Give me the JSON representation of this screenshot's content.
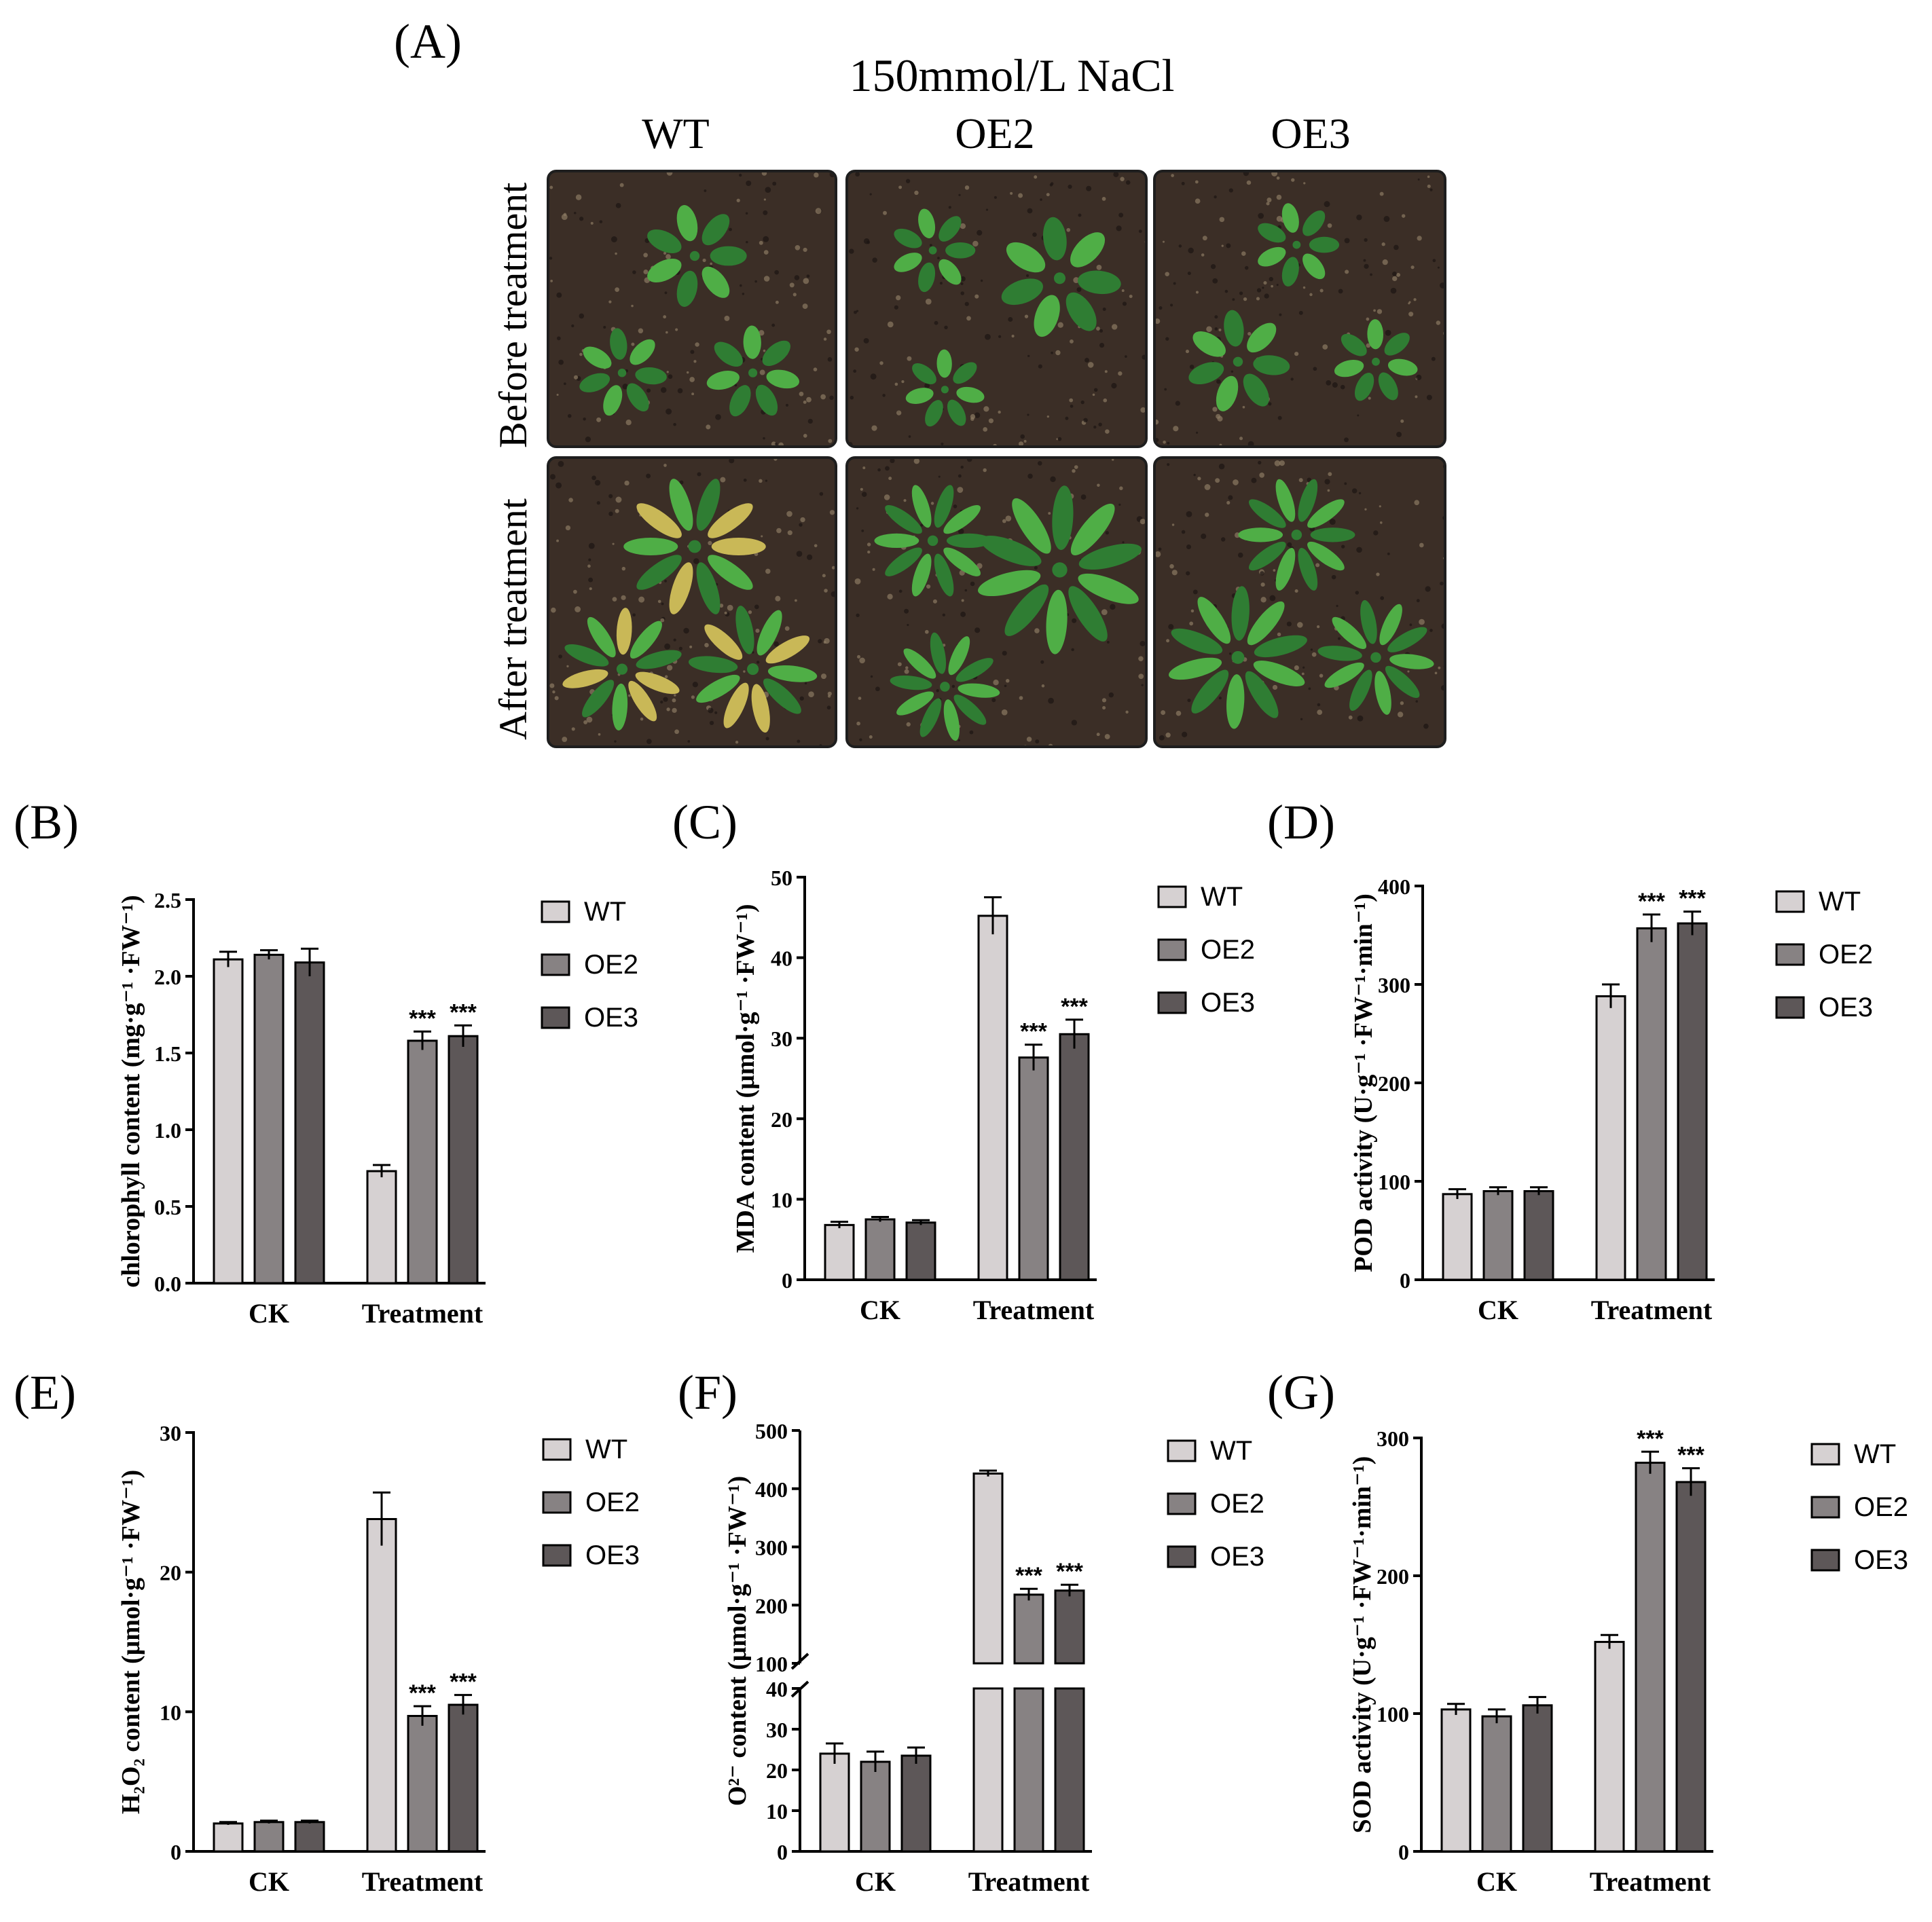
{
  "panel_a": {
    "letter": "(A)",
    "title": "150mmol/L NaCl",
    "columns": [
      "WT",
      "OE2",
      "OE3"
    ],
    "rows": [
      "Before treatment",
      "After treatment"
    ]
  },
  "chart_data": [
    {
      "letter": "(B)",
      "type": "bar",
      "categories": [
        "CK",
        "Treatment"
      ],
      "series": [
        {
          "name": "WT",
          "values": [
            2.11,
            0.73
          ],
          "errors": [
            0.05,
            0.04
          ],
          "sig": [
            "",
            ""
          ]
        },
        {
          "name": "OE2",
          "values": [
            2.14,
            1.58
          ],
          "errors": [
            0.03,
            0.06
          ],
          "sig": [
            "",
            "***"
          ]
        },
        {
          "name": "OE3",
          "values": [
            2.09,
            1.61
          ],
          "errors": [
            0.09,
            0.07
          ],
          "sig": [
            "",
            "***"
          ]
        }
      ],
      "ylabel": "chlorophyll content (mg·g⁻¹ ·FW⁻¹)",
      "ylim": [
        0,
        2.5
      ],
      "yticks": [
        "0.0",
        "0.5",
        "1.0",
        "1.5",
        "2.0",
        "2.5"
      ],
      "ytick_values": [
        0,
        0.5,
        1.0,
        1.5,
        2.0,
        2.5
      ]
    },
    {
      "letter": "(C)",
      "type": "bar",
      "categories": [
        "CK",
        "Treatment"
      ],
      "series": [
        {
          "name": "WT",
          "values": [
            6.8,
            45.2
          ],
          "errors": [
            0.4,
            2.3
          ],
          "sig": [
            "",
            ""
          ]
        },
        {
          "name": "OE2",
          "values": [
            7.5,
            27.6
          ],
          "errors": [
            0.3,
            1.6
          ],
          "sig": [
            "",
            "***"
          ]
        },
        {
          "name": "OE3",
          "values": [
            7.1,
            30.5
          ],
          "errors": [
            0.3,
            1.8
          ],
          "sig": [
            "",
            "***"
          ]
        }
      ],
      "ylabel": "MDA content (μmol·g⁻¹ ·FW⁻¹)",
      "ylim": [
        0,
        50
      ],
      "yticks": [
        "0",
        "10",
        "20",
        "30",
        "40",
        "50"
      ],
      "ytick_values": [
        0,
        10,
        20,
        30,
        40,
        50
      ]
    },
    {
      "letter": "(D)",
      "type": "bar",
      "categories": [
        "CK",
        "Treatment"
      ],
      "series": [
        {
          "name": "WT",
          "values": [
            87,
            288
          ],
          "errors": [
            5,
            12
          ],
          "sig": [
            "",
            ""
          ]
        },
        {
          "name": "OE2",
          "values": [
            90,
            357
          ],
          "errors": [
            4,
            14
          ],
          "sig": [
            "",
            "***"
          ]
        },
        {
          "name": "OE3",
          "values": [
            90,
            362
          ],
          "errors": [
            4,
            12
          ],
          "sig": [
            "",
            "***"
          ]
        }
      ],
      "ylabel": "POD activity (U·g⁻¹ ·FW⁻¹·min⁻¹)",
      "ylim": [
        0,
        400
      ],
      "yticks": [
        "0",
        "100",
        "200",
        "300",
        "400"
      ],
      "ytick_values": [
        0,
        100,
        200,
        300,
        400
      ]
    },
    {
      "letter": "(E)",
      "type": "bar",
      "categories": [
        "CK",
        "Treatment"
      ],
      "series": [
        {
          "name": "WT",
          "values": [
            2.0,
            23.8
          ],
          "errors": [
            0.1,
            1.9
          ],
          "sig": [
            "",
            ""
          ]
        },
        {
          "name": "OE2",
          "values": [
            2.1,
            9.7
          ],
          "errors": [
            0.1,
            0.7
          ],
          "sig": [
            "",
            "***"
          ]
        },
        {
          "name": "OE3",
          "values": [
            2.1,
            10.5
          ],
          "errors": [
            0.1,
            0.7
          ],
          "sig": [
            "",
            "***"
          ]
        }
      ],
      "ylabel": "H₂O₂ content (μmol·g⁻¹ ·FW⁻¹)",
      "ylim": [
        0,
        30
      ],
      "yticks": [
        "0",
        "10",
        "20",
        "30"
      ],
      "ytick_values": [
        0,
        10,
        20,
        30
      ]
    },
    {
      "letter": "(F)",
      "type": "bar",
      "broken_axis": true,
      "categories": [
        "CK",
        "Treatment"
      ],
      "series": [
        {
          "name": "WT",
          "values": [
            24,
            426
          ],
          "errors": [
            2.5,
            5
          ],
          "sig": [
            "",
            ""
          ]
        },
        {
          "name": "OE2",
          "values": [
            22,
            218
          ],
          "errors": [
            2.5,
            10
          ],
          "sig": [
            "",
            "***"
          ]
        },
        {
          "name": "OE3",
          "values": [
            23.5,
            225
          ],
          "errors": [
            2,
            10
          ],
          "sig": [
            "",
            "***"
          ]
        }
      ],
      "ylabel": "O²⁻ content (μmol·g⁻¹ ·FW⁻¹)",
      "ylim_lower": [
        0,
        40
      ],
      "ylim_upper": [
        100,
        500
      ],
      "yticks_lower": [
        "0",
        "10",
        "20",
        "30",
        "40"
      ],
      "ytick_values_lower": [
        0,
        10,
        20,
        30,
        40
      ],
      "yticks_upper": [
        "100",
        "200",
        "300",
        "400",
        "500"
      ],
      "ytick_values_upper": [
        100,
        200,
        300,
        400,
        500
      ]
    },
    {
      "letter": "(G)",
      "type": "bar",
      "categories": [
        "CK",
        "Treatment"
      ],
      "series": [
        {
          "name": "WT",
          "values": [
            103,
            152
          ],
          "errors": [
            4,
            5
          ],
          "sig": [
            "",
            ""
          ]
        },
        {
          "name": "OE2",
          "values": [
            98,
            282
          ],
          "errors": [
            5,
            8
          ],
          "sig": [
            "",
            "***"
          ]
        },
        {
          "name": "OE3",
          "values": [
            106,
            268
          ],
          "errors": [
            6,
            10
          ],
          "sig": [
            "",
            "***"
          ]
        }
      ],
      "ylabel": "SOD activity (U·g⁻¹ ·FW⁻¹·min⁻¹)",
      "ylim": [
        0,
        300
      ],
      "yticks": [
        "0",
        "100",
        "200",
        "300"
      ],
      "ytick_values": [
        0,
        100,
        200,
        300
      ]
    }
  ],
  "colors": {
    "WT": "#d6d1d2",
    "OE2": "#878283",
    "OE3": "#5d5758",
    "soil": "#3b2e26",
    "leaf": "#4fae46",
    "leaf_dark": "#2f7d33",
    "leaf_yellow": "#c9b857",
    "pot": "#1e1e1e"
  }
}
